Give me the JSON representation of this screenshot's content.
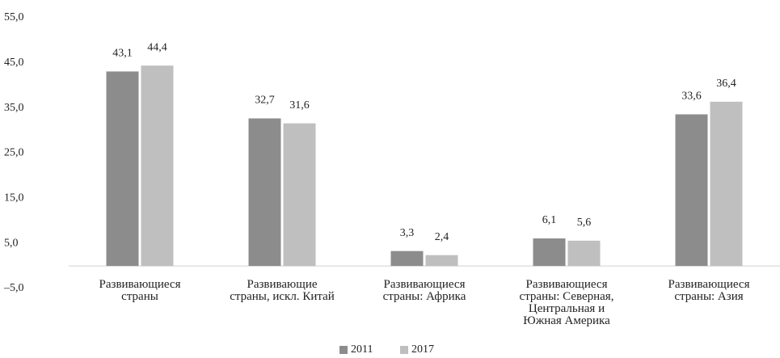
{
  "chart_data": {
    "type": "bar",
    "categories": [
      "Развивающиеся страны",
      "Развивающие страны, искл. Китай",
      "Развивающиеся страны: Африка",
      "Развивающиеся страны: Северная, Центральная и Южная Америка",
      "Развивающиеся страны: Азия"
    ],
    "series": [
      {
        "name": "2011",
        "color": "#8c8c8c",
        "values": [
          43.1,
          32.7,
          3.3,
          6.1,
          33.6
        ],
        "value_labels": [
          "43,1",
          "32,7",
          "3,3",
          "6,1",
          "33,6"
        ]
      },
      {
        "name": "2017",
        "color": "#bfbfbf",
        "values": [
          44.4,
          31.6,
          2.4,
          5.6,
          36.4
        ],
        "value_labels": [
          "44,4",
          "31,6",
          "2,4",
          "5,6",
          "36,4"
        ]
      }
    ],
    "ylim": [
      -5,
      55
    ],
    "yticks": [
      {
        "value": -5,
        "label": "–5,0"
      },
      {
        "value": 5,
        "label": "5,0"
      },
      {
        "value": 15,
        "label": "15,0"
      },
      {
        "value": 25,
        "label": "25,0"
      },
      {
        "value": 35,
        "label": "35,0"
      },
      {
        "value": 45,
        "label": "45,0"
      },
      {
        "value": 55,
        "label": "55,0"
      }
    ],
    "grid": false,
    "legend": "bottom"
  }
}
